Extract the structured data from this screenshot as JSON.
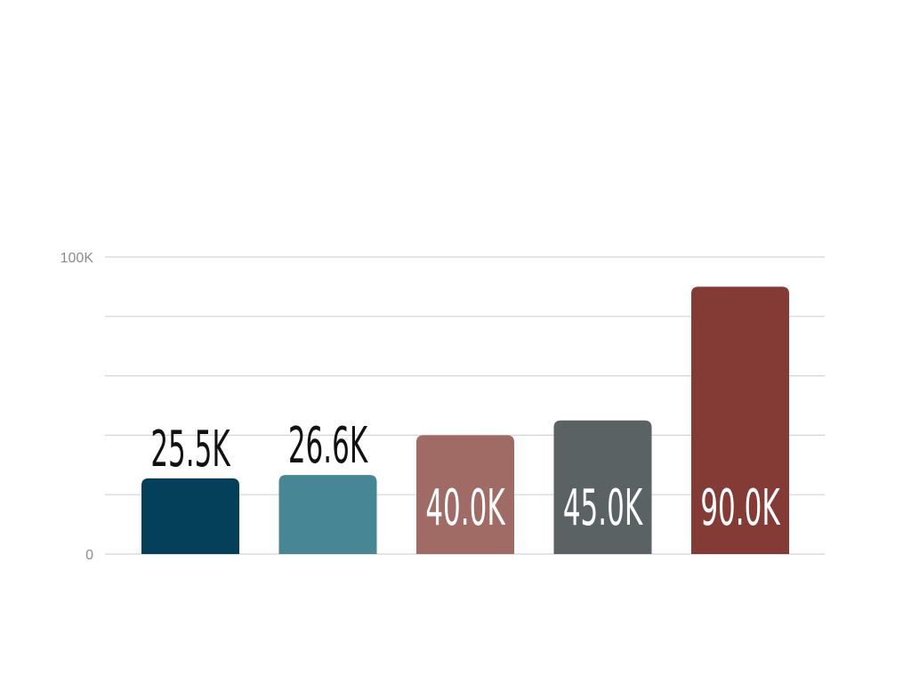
{
  "chart_data": {
    "type": "bar",
    "categories": [
      "",
      "",
      "",
      "",
      ""
    ],
    "values": [
      25500,
      26600,
      40000,
      45000,
      90000
    ],
    "data_labels": [
      "25.5K",
      "26.6K",
      "40.0K",
      "45.0K",
      "90.0K"
    ],
    "bar_colors": [
      "#04405a",
      "#478795",
      "#a06b64",
      "#5b6264",
      "#843b35"
    ],
    "data_label_placement": [
      "above",
      "above",
      "inside",
      "inside",
      "inside"
    ],
    "data_label_colors": {
      "inside": "#ffffff",
      "above": "#111111"
    },
    "y_tick_labels": [
      {
        "value": 0,
        "label": "0"
      },
      {
        "value": 100000,
        "label": "100K"
      }
    ],
    "gridline_values": [
      0,
      20000,
      40000,
      60000,
      80000,
      100000
    ],
    "ylim": [
      0,
      100000
    ],
    "title": "",
    "xlabel": "",
    "ylabel": "",
    "grid": true,
    "legend": "none",
    "colors": {
      "grid": "#d4d4d4",
      "tick_text": "#8c8c8c",
      "background": "#ffffff"
    }
  }
}
